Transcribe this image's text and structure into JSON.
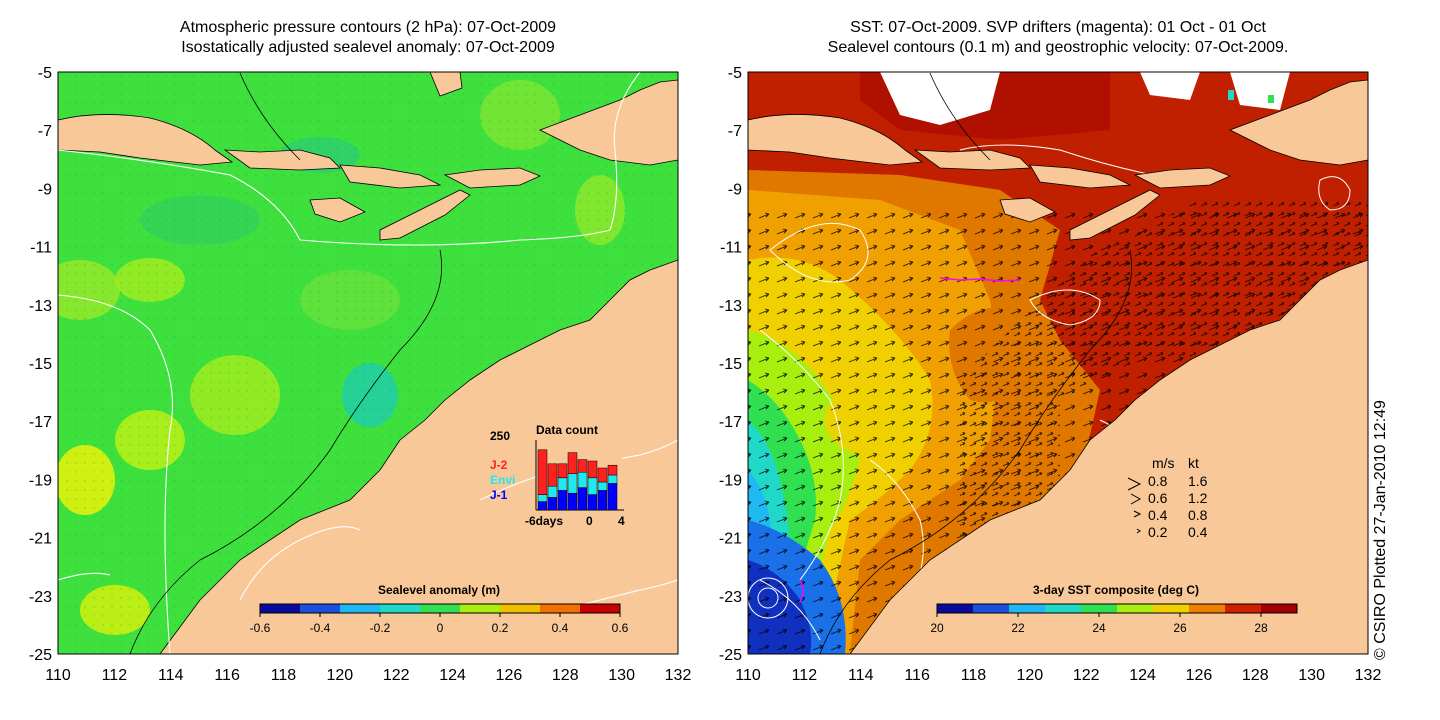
{
  "left_panel": {
    "title_line1": "Atmospheric pressure contours (2 hPa): 07-Oct-2009",
    "title_line2": "Isostatically adjusted sealevel anomaly: 07-Oct-2009",
    "colorbar": {
      "label": "Sealevel anomaly (m)",
      "ticks": [
        "-0.6",
        "-0.4",
        "-0.2",
        "0",
        "0.2",
        "0.4",
        "0.6"
      ],
      "colors": [
        "#0a0a9a",
        "#1a50e0",
        "#1fb8f0",
        "#20d8c8",
        "#30e050",
        "#a8ef10",
        "#f0c000",
        "#f07000",
        "#c80000"
      ]
    },
    "inset": {
      "title": "Data count",
      "y_max_label": "250",
      "x_tick_labels": [
        "-6days",
        "0",
        "4"
      ],
      "legend": [
        {
          "label": "J-2",
          "color": "#ff2020"
        },
        {
          "label": "Envi",
          "color": "#20e8f0"
        },
        {
          "label": "J-1",
          "color": "#0000ff"
        }
      ],
      "bars_j1": [
        30,
        45,
        70,
        60,
        80,
        55,
        70,
        95
      ],
      "bars_envi": [
        25,
        40,
        45,
        70,
        55,
        60,
        30,
        30
      ],
      "bars_j2": [
        160,
        80,
        50,
        75,
        45,
        60,
        50,
        35
      ]
    }
  },
  "right_panel": {
    "title_line1": "SST: 07-Oct-2009. SVP drifters (magenta): 01 Oct - 01 Oct",
    "title_line2": "Sealevel contours (0.1 m) and geostrophic velocity: 07-Oct-2009.",
    "colorbar": {
      "label": "3-day SST composite (deg C)",
      "ticks": [
        "20",
        "22",
        "24",
        "26",
        "28"
      ],
      "colors": [
        "#0a0a9a",
        "#1a50e0",
        "#1fb8f0",
        "#20d8c8",
        "#30e050",
        "#a8ef10",
        "#f0d000",
        "#f08000",
        "#d02000",
        "#a00000"
      ]
    },
    "velocity_legend": {
      "header_ms": "m/s",
      "header_kt": "kt",
      "rows": [
        {
          "ms": "0.8",
          "kt": "1.6"
        },
        {
          "ms": "0.6",
          "kt": "1.2"
        },
        {
          "ms": "0.4",
          "kt": "0.8"
        },
        {
          "ms": "0.2",
          "kt": "0.4"
        }
      ]
    }
  },
  "axes": {
    "lat_labels": [
      "-5",
      "-7",
      "-9",
      "-11",
      "-13",
      "-15",
      "-17",
      "-19",
      "-21",
      "-23",
      "-25"
    ],
    "lon_labels": [
      "110",
      "112",
      "114",
      "116",
      "118",
      "120",
      "122",
      "124",
      "126",
      "128",
      "130",
      "132"
    ]
  },
  "credit": "© CSIRO Plotted 27-Jan-2010 12:49",
  "colors": {
    "land": "#f8c898",
    "ocean_green": "#3ee03e",
    "sst_dark_red": "#b01000"
  }
}
